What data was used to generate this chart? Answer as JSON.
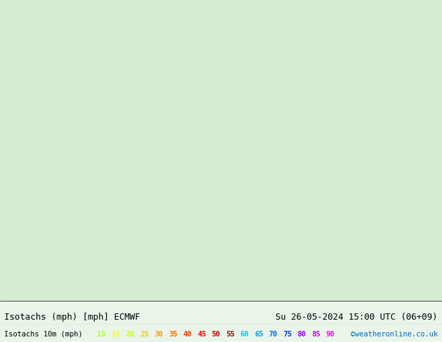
{
  "title_left": "Isotachs (mph) [mph] ECMWF",
  "title_right": "Su 26-05-2024 15:00 UTC (06+09)",
  "legend_label": "Isotachs 10m (mph)",
  "legend_values": [
    10,
    15,
    20,
    25,
    30,
    35,
    40,
    45,
    50,
    55,
    60,
    65,
    70,
    75,
    80,
    85,
    90
  ],
  "legend_colors": [
    "#adff2f",
    "#ffff00",
    "#c8ff00",
    "#ffcc00",
    "#ff9900",
    "#ff6600",
    "#ff3300",
    "#ff0000",
    "#cc0000",
    "#990000",
    "#00ccff",
    "#0099ff",
    "#0066ff",
    "#0033ff",
    "#9900ff",
    "#cc00ff",
    "#ff00ff"
  ],
  "copyright": "©weatheronline.co.uk",
  "bg_color": "#e8f5e8",
  "map_bg": "#d4ecd4",
  "title_fontsize": 9,
  "legend_fontsize": 7.5,
  "fig_width": 6.34,
  "fig_height": 4.9,
  "dpi": 100
}
